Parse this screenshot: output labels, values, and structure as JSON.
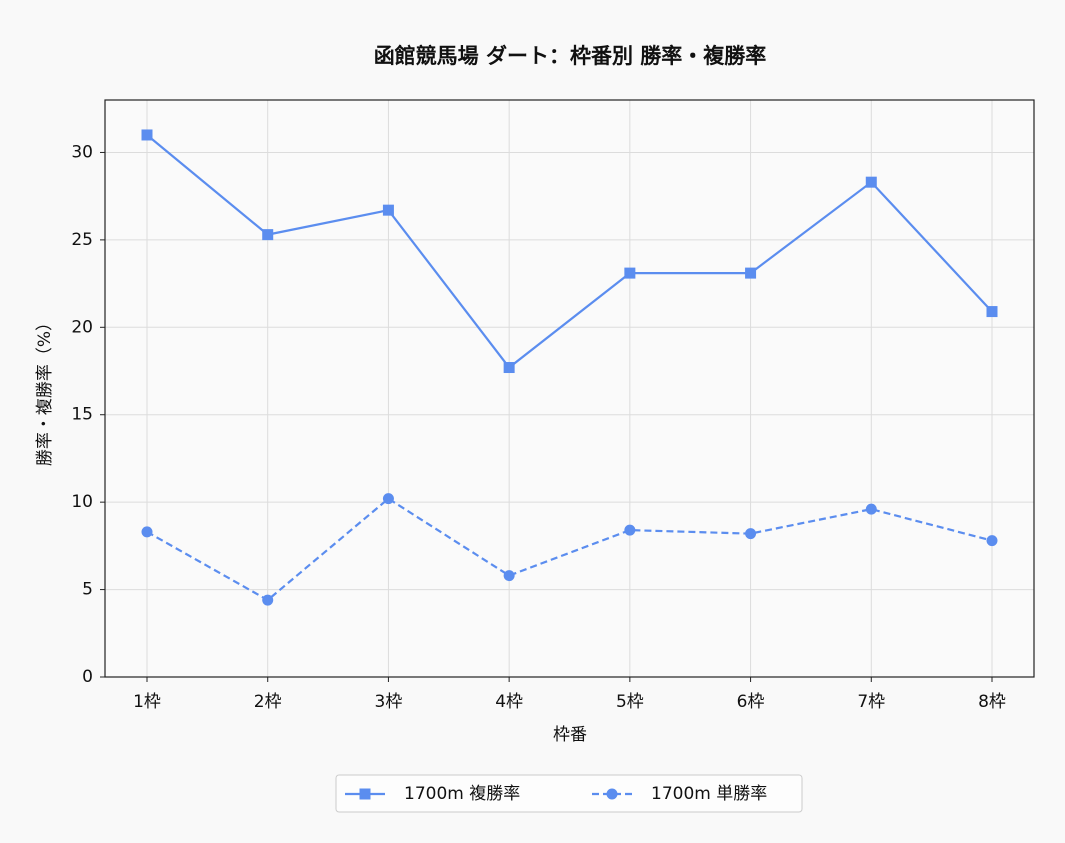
{
  "chart_data": {
    "type": "line",
    "title": "函館競馬場 ダート：枠番別 勝率・複勝率",
    "xlabel": "枠番",
    "ylabel": "勝率・複勝率（%）",
    "categories": [
      "1枠",
      "2枠",
      "3枠",
      "4枠",
      "5枠",
      "6枠",
      "7枠",
      "8枠"
    ],
    "series": [
      {
        "name": "1700m 複勝率",
        "color": "#5b8def",
        "linestyle": "solid",
        "marker": "square",
        "values": [
          31.0,
          25.3,
          26.7,
          17.7,
          23.1,
          23.1,
          28.3,
          20.9
        ]
      },
      {
        "name": "1700m 単勝率",
        "color": "#5b8def",
        "linestyle": "dashed",
        "marker": "circle",
        "values": [
          8.3,
          4.4,
          10.2,
          5.8,
          8.4,
          8.2,
          9.6,
          7.8
        ]
      }
    ],
    "ylim": [
      0,
      33
    ],
    "yticks": [
      0,
      5,
      10,
      15,
      20,
      25,
      30
    ],
    "grid": true,
    "legend": "bottom"
  }
}
